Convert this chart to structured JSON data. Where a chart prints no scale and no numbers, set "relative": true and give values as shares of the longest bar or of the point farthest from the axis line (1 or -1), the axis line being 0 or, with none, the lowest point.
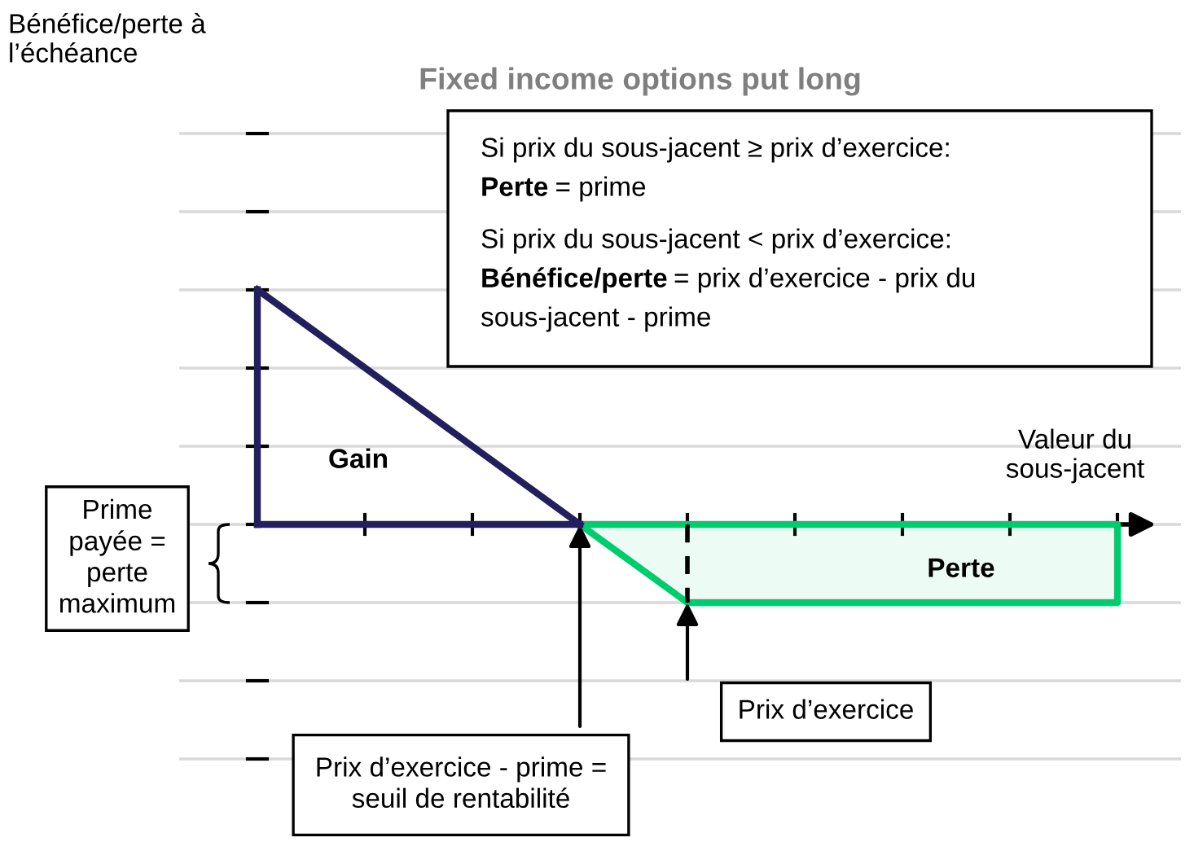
{
  "chart_data": {
    "type": "line",
    "relative": true,
    "title": "Fixed income options put long",
    "xlabel": "Valeur du\nsous-jacent",
    "grid": "y",
    "categories": [
      null,
      null,
      null,
      null,
      null,
      null,
      null,
      null,
      null
    ],
    "series": [
      {
        "color": "#231f5c",
        "values": [
          1,
          0.667,
          0.333,
          0,
          null,
          null,
          null,
          null,
          null
        ]
      },
      {
        "color": "#231f5c",
        "values": [
          0,
          0,
          0,
          0,
          null,
          null,
          null,
          null,
          null
        ]
      },
      {
        "type": "area",
        "color": "#00cc6e",
        "values": [
          null,
          null,
          null,
          0,
          -0.333,
          -0.333,
          -0.333,
          -0.333,
          -0.333
        ]
      }
    ],
    "annotations": [
      "Bénéfice/perte à\nl’échéance",
      "Si prix du sous-jacent ≥ prix d’exercice:",
      "Perte",
      "= prime",
      "Si prix du sous-jacent < prix d’exercice:",
      "Bénéfice/perte",
      "= prix d’exercice - prix du",
      "sous-jacent - prime",
      "Gain",
      "Perte",
      "Prime\npayée =\nperte\nmaximum",
      "Prix d’exercice",
      "Prix d’exercice - prime =\nseuil de rentabilité"
    ]
  }
}
